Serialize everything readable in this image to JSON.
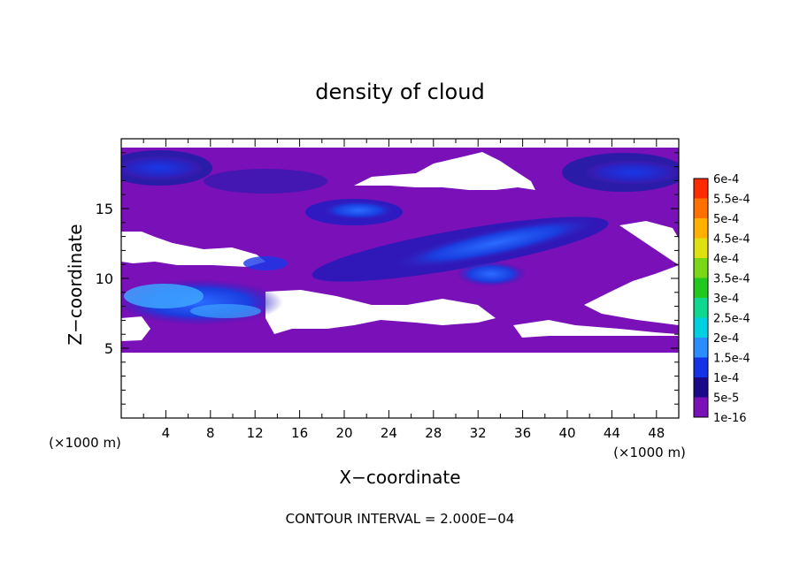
{
  "chart_data": {
    "type": "heatmap",
    "title": "density of cloud",
    "xlabel": "X−coordinate",
    "ylabel": "Z−coordinate",
    "x_unit_left": "(×1000 m)",
    "x_unit_right": "(×1000 m)",
    "footer": "CONTOUR INTERVAL = 2.000E−04",
    "xlim": [
      0,
      50
    ],
    "ylim": [
      0,
      20
    ],
    "x_ticks": [
      "4",
      "8",
      "12",
      "16",
      "20",
      "24",
      "28",
      "32",
      "36",
      "40",
      "44",
      "48"
    ],
    "y_ticks": [
      "5",
      "10",
      "15"
    ],
    "colorbar": {
      "levels": [
        "1e-16",
        "5e-5",
        "1e-4",
        "1.5e-4",
        "2e-4",
        "2.5e-4",
        "3e-4",
        "3.5e-4",
        "4e-4",
        "4.5e-4",
        "5e-4",
        "5.5e-4",
        "6e-4"
      ],
      "colors": [
        "#7a10b8",
        "#1a0a8a",
        "#1432e6",
        "#2a8cff",
        "#00d0e0",
        "#10d890",
        "#20c820",
        "#78d818",
        "#e0e010",
        "#ffb000",
        "#ff7000",
        "#ff2a00",
        "#ff4040",
        "#ff8c8c"
      ]
    },
    "field_regions": [
      {
        "level": "1e-16",
        "x": [
          0,
          50
        ],
        "z": [
          4.7,
          19.0
        ]
      },
      {
        "level": "1e-4",
        "x": [
          1,
          14
        ],
        "z": [
          7.0,
          10.5
        ]
      },
      {
        "level": "1e-4",
        "x": [
          18,
          44
        ],
        "z": [
          10.5,
          15.5
        ]
      },
      {
        "level": "1e-4",
        "x": [
          0,
          8
        ],
        "z": [
          16.0,
          19.0
        ]
      },
      {
        "level": "1e-4",
        "x": [
          40,
          50
        ],
        "z": [
          16.0,
          19.0
        ]
      },
      {
        "level": "1.5e-4",
        "x": [
          1,
          12
        ],
        "z": [
          7.5,
          10.0
        ]
      }
    ]
  }
}
